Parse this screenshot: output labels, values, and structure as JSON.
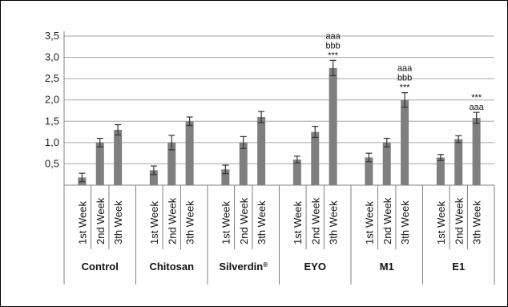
{
  "chart_data": {
    "type": "bar",
    "groups": [
      "Control",
      "Chitosan",
      "Silverdin",
      "EYO",
      "M1",
      "E1"
    ],
    "group_superscripts": [
      "",
      "",
      "®",
      "",
      "",
      ""
    ],
    "categories": [
      "1st Week",
      "2nd Week",
      "3th Week"
    ],
    "values": [
      [
        0.18,
        1.0,
        1.3
      ],
      [
        0.35,
        1.0,
        1.5
      ],
      [
        0.37,
        1.0,
        1.6
      ],
      [
        0.6,
        1.25,
        2.75
      ],
      [
        0.65,
        1.0,
        2.0
      ],
      [
        0.65,
        1.08,
        1.58
      ]
    ],
    "errors": [
      [
        0.1,
        0.1,
        0.12
      ],
      [
        0.1,
        0.17,
        0.1
      ],
      [
        0.1,
        0.14,
        0.13
      ],
      [
        0.08,
        0.13,
        0.18
      ],
      [
        0.1,
        0.1,
        0.17
      ],
      [
        0.07,
        0.08,
        0.13
      ]
    ],
    "annotations": [
      {
        "group": 3,
        "bar": 2,
        "lines": [
          "aaa",
          "bbb",
          "***"
        ]
      },
      {
        "group": 4,
        "bar": 2,
        "lines": [
          "aaa",
          "bbb",
          "***"
        ]
      },
      {
        "group": 5,
        "bar": 2,
        "lines": [
          "***",
          "aaa"
        ]
      }
    ],
    "y_ticks": [
      "0,5",
      "1,0",
      "1,5",
      "2,0",
      "2,5",
      "3,0",
      "3,5"
    ],
    "ylim": [
      0,
      3.5
    ],
    "grid": true,
    "colors": {
      "bar": "#7f7f7f",
      "error": "#333333",
      "grid": "#a6a6a6",
      "axis": "#808080"
    }
  }
}
